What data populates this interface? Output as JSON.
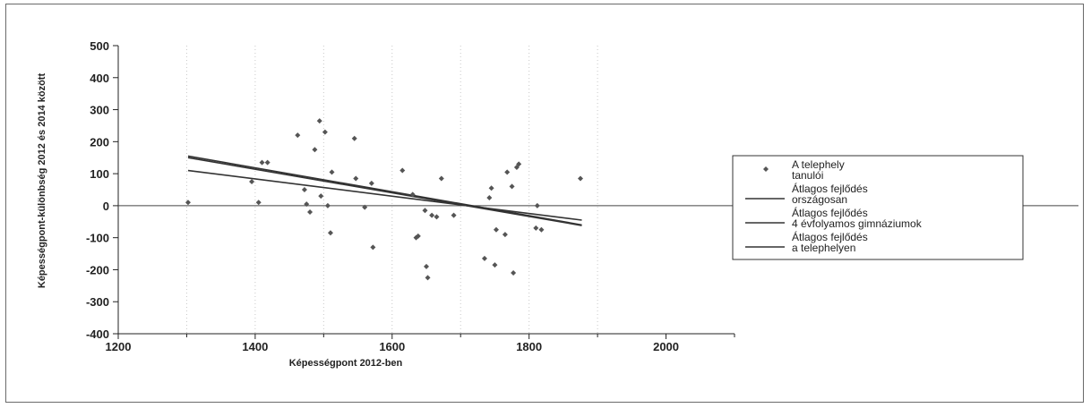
{
  "chart_data": {
    "type": "scatter",
    "title": "",
    "xlabel": "Képességpont 2012-ben",
    "ylabel": "Képességpont-különbség 2012 és 2014 között",
    "xlim": [
      1200,
      2100
    ],
    "ylim": [
      -400,
      500
    ],
    "xticks": [
      1200,
      1400,
      1600,
      1800,
      2000
    ],
    "yticks": [
      500,
      400,
      300,
      200,
      100,
      0,
      -100,
      -200,
      -300,
      -400
    ],
    "grid": "vertical-dotted",
    "legend_position": "right",
    "point_color": "#555555",
    "line_color": "#333333",
    "series": [
      {
        "name": "A telephely tanulói",
        "type": "scatter",
        "points": [
          [
            1302,
            10
          ],
          [
            1395,
            75
          ],
          [
            1405,
            10
          ],
          [
            1410,
            135
          ],
          [
            1418,
            135
          ],
          [
            1462,
            220
          ],
          [
            1472,
            50
          ],
          [
            1475,
            5
          ],
          [
            1480,
            -20
          ],
          [
            1487,
            175
          ],
          [
            1494,
            265
          ],
          [
            1496,
            30
          ],
          [
            1502,
            230
          ],
          [
            1506,
            0
          ],
          [
            1510,
            -85
          ],
          [
            1512,
            105
          ],
          [
            1545,
            210
          ],
          [
            1547,
            85
          ],
          [
            1560,
            -5
          ],
          [
            1570,
            70
          ],
          [
            1572,
            -130
          ],
          [
            1615,
            110
          ],
          [
            1630,
            35
          ],
          [
            1635,
            -100
          ],
          [
            1638,
            -95
          ],
          [
            1648,
            -15
          ],
          [
            1650,
            -190
          ],
          [
            1652,
            -225
          ],
          [
            1658,
            -30
          ],
          [
            1665,
            -35
          ],
          [
            1672,
            85
          ],
          [
            1690,
            -30
          ],
          [
            1735,
            -165
          ],
          [
            1742,
            25
          ],
          [
            1745,
            55
          ],
          [
            1750,
            -185
          ],
          [
            1752,
            -75
          ],
          [
            1765,
            -90
          ],
          [
            1768,
            105
          ],
          [
            1775,
            60
          ],
          [
            1777,
            -210
          ],
          [
            1782,
            120
          ],
          [
            1785,
            130
          ],
          [
            1810,
            -70
          ],
          [
            1812,
            0
          ],
          [
            1818,
            -75
          ],
          [
            1875,
            85
          ]
        ]
      },
      {
        "name": "Átlagos fejlődés országosan",
        "type": "line",
        "x": [
          1302,
          1877
        ],
        "y": [
          155,
          -60
        ]
      },
      {
        "name": "Átlagos fejlődés 4 évfolyamos gimnáziumok",
        "type": "line",
        "x": [
          1302,
          1877
        ],
        "y": [
          150,
          -62
        ]
      },
      {
        "name": "Átlagos fejlődés a telephelyen",
        "type": "line",
        "x": [
          1302,
          1877
        ],
        "y": [
          110,
          -45
        ]
      }
    ],
    "legend": [
      {
        "label_lines": [
          "A telephely",
          "tanulói"
        ],
        "marker": "point"
      },
      {
        "label_lines": [
          "Átlagos fejlődés",
          "országosan"
        ],
        "marker": "line"
      },
      {
        "label_lines": [
          "Átlagos fejlődés",
          "4 évfolyamos gimnáziumok"
        ],
        "marker": "line"
      },
      {
        "label_lines": [
          "Átlagos fejlődés",
          "a telephelyen"
        ],
        "marker": "line"
      }
    ]
  }
}
